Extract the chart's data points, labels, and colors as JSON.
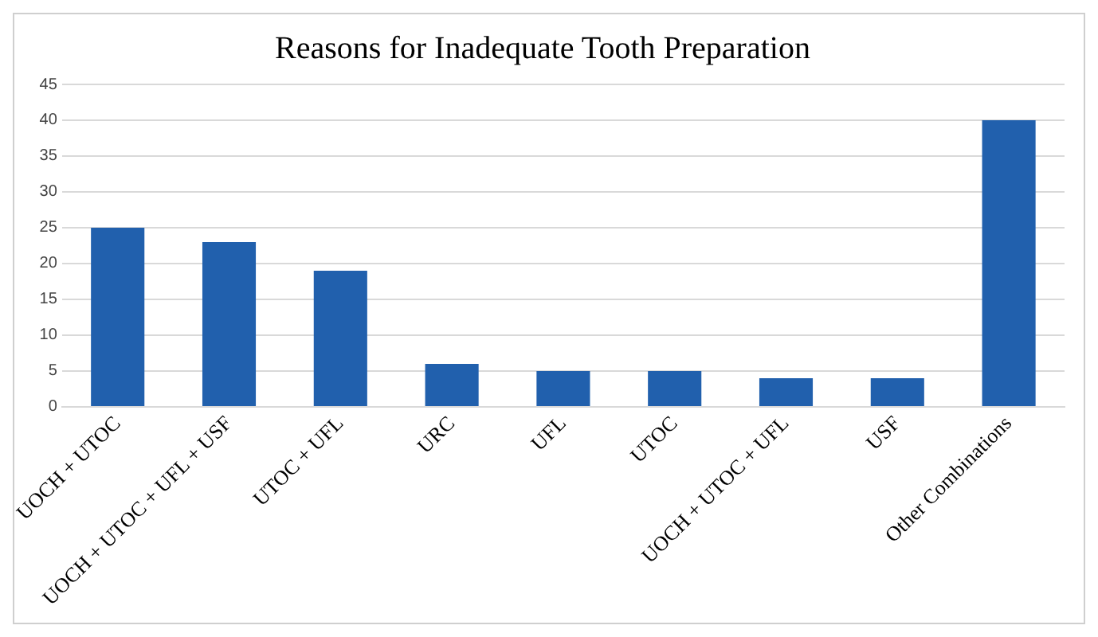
{
  "chart_data": {
    "type": "bar",
    "title": "Reasons for Inadequate Tooth Preparation",
    "categories": [
      "UOCH + UTOC",
      "UOCH + UTOC + UFL + USF",
      "UTOC + UFL",
      "URC",
      "UFL",
      "UTOC",
      "UOCH + UTOC + UFL",
      "USF",
      "Other Combinations"
    ],
    "values": [
      25,
      23,
      19,
      6,
      5,
      5,
      4,
      4,
      40
    ],
    "color": "#2160ad",
    "ylim": [
      0,
      45
    ],
    "yticks": [
      0,
      5,
      10,
      15,
      20,
      25,
      30,
      35,
      40,
      45
    ],
    "grid": "y"
  }
}
